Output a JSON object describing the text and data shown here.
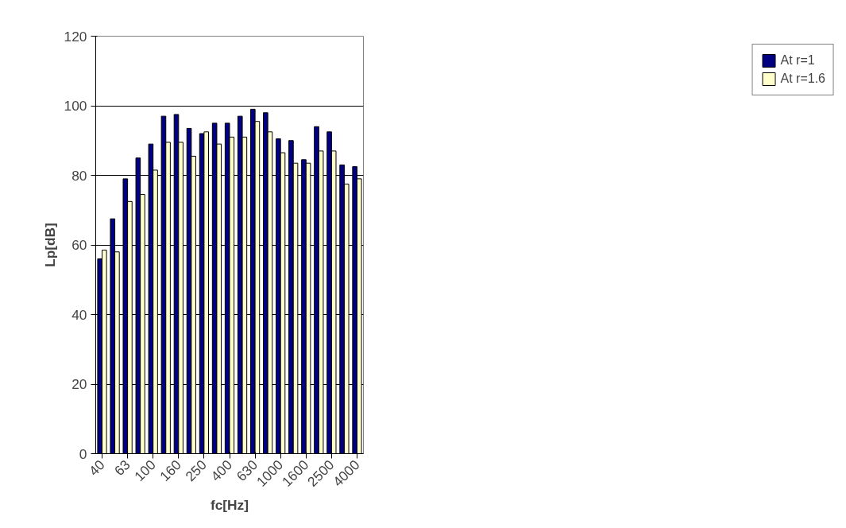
{
  "chart_data": {
    "type": "bar",
    "xlabel": "fc[Hz]",
    "ylabel": "Lp[dB]",
    "categories": [
      "40",
      null,
      "63",
      null,
      "100",
      null,
      "160",
      null,
      "250",
      null,
      "400",
      null,
      "630",
      null,
      "1000",
      null,
      "1600",
      null,
      "2500",
      null,
      "4000"
    ],
    "series": [
      {
        "name": "At r=1",
        "color": "#000080",
        "values": [
          56,
          67.5,
          79,
          85,
          89,
          97,
          97.5,
          93.5,
          92,
          95,
          95,
          97,
          99,
          98,
          90.5,
          90,
          84.5,
          94,
          92.5,
          83,
          82.5
        ]
      },
      {
        "name": "At r=1.6",
        "color": "#ffffcc",
        "values": [
          58.5,
          58,
          72.5,
          74.5,
          81.5,
          89.5,
          89.5,
          85.5,
          92.5,
          89,
          91,
          91,
          95.5,
          92.5,
          86.5,
          83.5,
          83.5,
          87,
          87,
          77.5,
          79
        ]
      }
    ],
    "ylim": [
      0,
      120
    ],
    "yticks": [
      0,
      20,
      40,
      60,
      80,
      100,
      120
    ],
    "grid": "y",
    "legend": "right"
  }
}
